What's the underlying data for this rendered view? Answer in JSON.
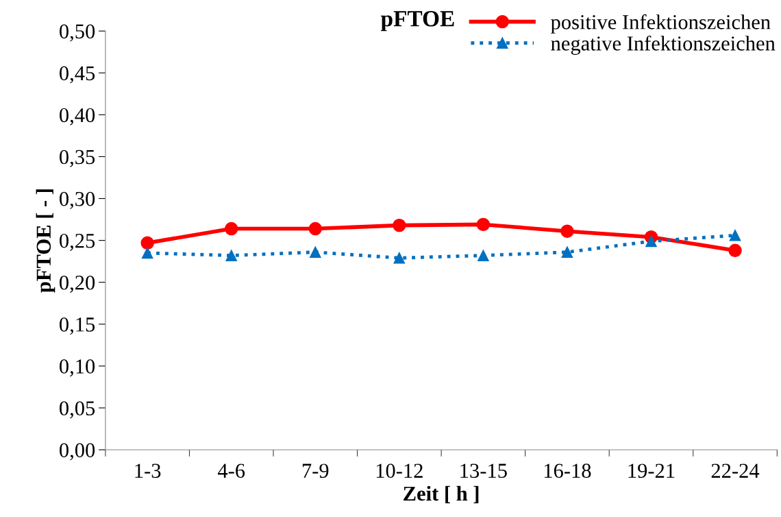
{
  "chart_data": {
    "type": "line",
    "title": "pFTOE",
    "xlabel": "Zeit [ h ]",
    "ylabel": "pFTOE [ - ]",
    "categories": [
      "1-3",
      "4-6",
      "7-9",
      "10-12",
      "13-15",
      "16-18",
      "19-21",
      "22-24"
    ],
    "series": [
      {
        "name": "positive Infektionszeichen",
        "color": "#ff0000",
        "marker": "circle",
        "line_style": "solid",
        "values": [
          0.247,
          0.264,
          0.264,
          0.268,
          0.269,
          0.261,
          0.254,
          0.238
        ]
      },
      {
        "name": "negative Infektionszeichen",
        "color": "#0070c0",
        "marker": "triangle",
        "line_style": "dotted",
        "values": [
          0.235,
          0.232,
          0.236,
          0.229,
          0.232,
          0.236,
          0.249,
          0.256
        ]
      }
    ],
    "ylim": [
      0,
      0.5
    ],
    "yticks": [
      {
        "value": 0,
        "label": "0,00"
      },
      {
        "value": 0.05,
        "label": "0,05"
      },
      {
        "value": 0.1,
        "label": "0,10"
      },
      {
        "value": 0.15,
        "label": "0,15"
      },
      {
        "value": 0.2,
        "label": "0,20"
      },
      {
        "value": 0.25,
        "label": "0,25"
      },
      {
        "value": 0.3,
        "label": "0,30"
      },
      {
        "value": 0.35,
        "label": "0,35"
      },
      {
        "value": 0.4,
        "label": "0,40"
      },
      {
        "value": 0.45,
        "label": "0,45"
      },
      {
        "value": 0.5,
        "label": "0,50"
      }
    ],
    "grid": false,
    "legend": "top right"
  }
}
